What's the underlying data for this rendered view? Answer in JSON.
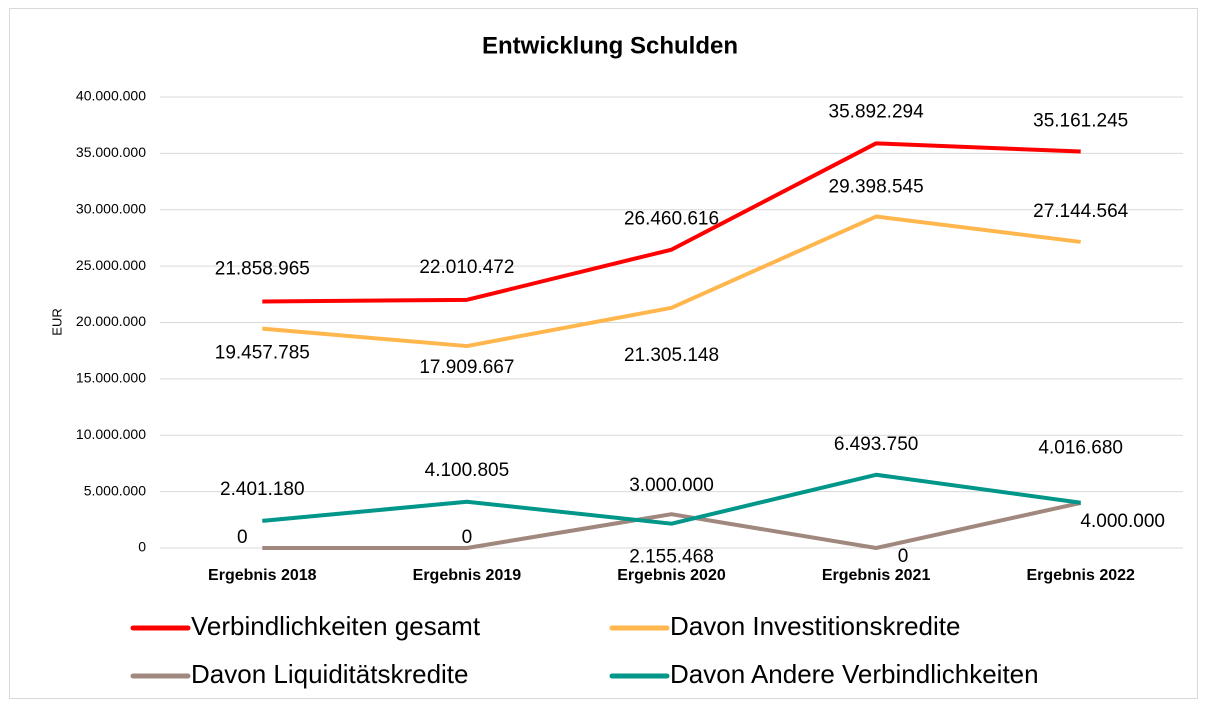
{
  "chart_data": {
    "type": "line",
    "title": "Entwicklung Schulden",
    "y_label": "EUR",
    "categories": [
      "Ergebnis 2018",
      "Ergebnis 2019",
      "Ergebnis 2020",
      "Ergebnis 2021",
      "Ergebnis 2022"
    ],
    "series": [
      {
        "name": "Verbindlichkeiten gesamt",
        "color": "#ff0000",
        "values": [
          21858965,
          22010472,
          26460616,
          35892294,
          35161245
        ],
        "value_labels": [
          "21.858.965",
          "22.010.472",
          "26.460.616",
          "35.892.294",
          "35.161.245"
        ]
      },
      {
        "name": "Davon Investitionskredite",
        "color": "#ffb74d",
        "values": [
          19457785,
          17909667,
          21305148,
          29398545,
          27144564
        ],
        "value_labels": [
          "19.457.785",
          "17.909.667",
          "21.305.148",
          "29.398.545",
          "27.144.564"
        ]
      },
      {
        "name": "Davon Liquiditätskredite",
        "color": "#a1887f",
        "values": [
          0,
          0,
          3000000,
          0,
          4000000
        ],
        "value_labels": [
          "0",
          "0",
          "3.000.000",
          "0",
          "4.000.000"
        ]
      },
      {
        "name": "Davon Andere Verbindlichkeiten",
        "color": "#00968a",
        "values": [
          2401180,
          4100805,
          2155468,
          6493750,
          4016680
        ],
        "value_labels": [
          "2.401.180",
          "4.100.805",
          "2.155.468",
          "6.493.750",
          "4.016.680"
        ]
      }
    ],
    "ylim": [
      0,
      40000000
    ],
    "yticks": [
      {
        "value": 0,
        "label": "0"
      },
      {
        "value": 5000000,
        "label": "5.000.000"
      },
      {
        "value": 10000000,
        "label": "10.000.000"
      },
      {
        "value": 15000000,
        "label": "15.000.000"
      },
      {
        "value": 20000000,
        "label": "20.000.000"
      },
      {
        "value": 25000000,
        "label": "25.000.000"
      },
      {
        "value": 30000000,
        "label": "30.000.000"
      },
      {
        "value": 35000000,
        "label": "35.000.000"
      },
      {
        "value": 40000000,
        "label": "40.000.000"
      }
    ],
    "grid": true,
    "legend": "bottom"
  }
}
